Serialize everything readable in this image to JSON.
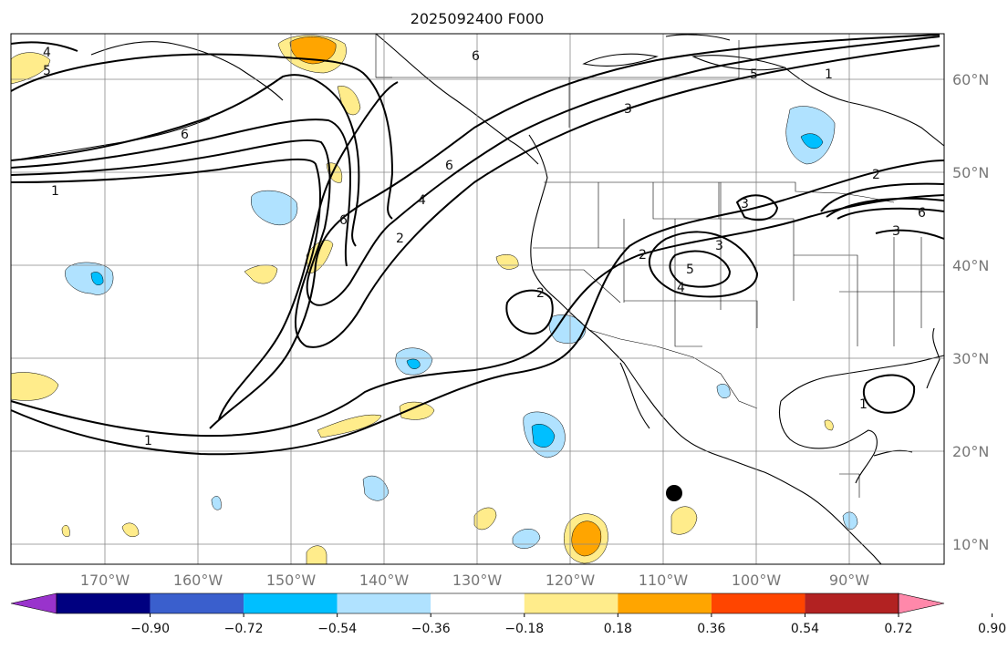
{
  "title": "2025092400 F000",
  "lat_labels": [
    "60°N",
    "50°N",
    "40°N",
    "30°N",
    "20°N",
    "10°N"
  ],
  "lon_labels": [
    "170°W",
    "160°W",
    "150°W",
    "140°W",
    "130°W",
    "120°W",
    "110°W",
    "100°W",
    "90°W"
  ],
  "colorbar": {
    "colors": [
      "#9933cc",
      "#000080",
      "#3a5fcd",
      "#00bfff",
      "#b0e2ff",
      "#ffffff",
      "#ffec8b",
      "#ffa500",
      "#ff4500",
      "#b22222",
      "#ff88aa"
    ],
    "tick_labels": [
      "−0.90",
      "−0.72",
      "−0.54",
      "−0.36",
      "−0.18",
      "0.18",
      "0.36",
      "0.54",
      "0.72",
      "0.90"
    ]
  },
  "contour_labels": [
    "4",
    "5",
    "6",
    "6",
    "3",
    "5",
    "1",
    "6",
    "1",
    "6",
    "4",
    "2",
    "2",
    "3",
    "3",
    "2",
    "4",
    "5",
    "2",
    "6",
    "3",
    "1",
    "1"
  ],
  "marker": "black-dot"
}
